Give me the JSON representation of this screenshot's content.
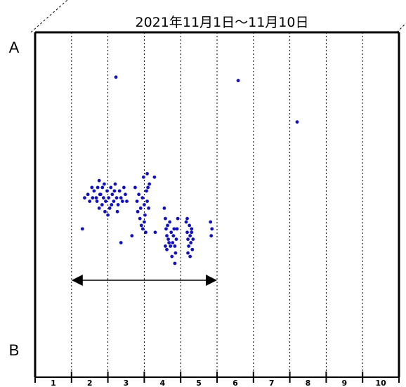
{
  "chart_data": {
    "type": "scatter",
    "title": "2021年11月1日〜11月10日",
    "top_label": "A",
    "bottom_label": "B",
    "categories": [
      "1",
      "2",
      "3",
      "4",
      "5",
      "6",
      "7",
      "8",
      "9",
      "10"
    ],
    "xlim": [
      0,
      10
    ],
    "ylim": [
      0,
      1
    ],
    "point_color": "#1010c0",
    "grid": "dotted vertical lines at day boundaries",
    "range_arrow": {
      "from": 1,
      "to": 5
    },
    "points": [
      [
        2.22,
        0.87
      ],
      [
        5.58,
        0.86
      ],
      [
        7.2,
        0.74
      ],
      [
        1.36,
        0.52
      ],
      [
        1.45,
        0.53
      ],
      [
        1.5,
        0.51
      ],
      [
        1.58,
        0.52
      ],
      [
        1.62,
        0.54
      ],
      [
        1.7,
        0.51
      ],
      [
        1.72,
        0.55
      ],
      [
        1.76,
        0.57
      ],
      [
        1.8,
        0.53
      ],
      [
        1.84,
        0.5
      ],
      [
        1.88,
        0.52
      ],
      [
        1.9,
        0.56
      ],
      [
        1.94,
        0.51
      ],
      [
        1.98,
        0.54
      ],
      [
        2.02,
        0.52
      ],
      [
        2.05,
        0.49
      ],
      [
        2.08,
        0.55
      ],
      [
        2.12,
        0.53
      ],
      [
        2.16,
        0.51
      ],
      [
        2.2,
        0.56
      ],
      [
        2.24,
        0.52
      ],
      [
        2.28,
        0.5
      ],
      [
        2.32,
        0.54
      ],
      [
        2.36,
        0.52
      ],
      [
        2.4,
        0.51
      ],
      [
        2.44,
        0.55
      ],
      [
        2.48,
        0.53
      ],
      [
        2.52,
        0.51
      ],
      [
        1.76,
        0.49
      ],
      [
        1.92,
        0.48
      ],
      [
        2.0,
        0.47
      ],
      [
        2.26,
        0.48
      ],
      [
        1.85,
        0.55
      ],
      [
        2.1,
        0.5
      ],
      [
        2.18,
        0.54
      ],
      [
        1.68,
        0.52
      ],
      [
        1.56,
        0.55
      ],
      [
        1.78,
        0.53
      ],
      [
        2.75,
        0.55
      ],
      [
        2.8,
        0.51
      ],
      [
        2.85,
        0.53
      ],
      [
        2.9,
        0.49
      ],
      [
        2.95,
        0.52
      ],
      [
        3.0,
        0.5
      ],
      [
        3.02,
        0.47
      ],
      [
        3.06,
        0.54
      ],
      [
        3.08,
        0.51
      ],
      [
        3.1,
        0.55
      ],
      [
        3.12,
        0.49
      ],
      [
        3.14,
        0.56
      ],
      [
        2.88,
        0.46
      ],
      [
        2.92,
        0.44
      ],
      [
        2.96,
        0.43
      ],
      [
        3.0,
        0.45
      ],
      [
        3.04,
        0.42
      ],
      [
        2.82,
        0.48
      ],
      [
        3.28,
        0.58
      ],
      [
        2.66,
        0.41
      ],
      [
        2.36,
        0.39
      ],
      [
        1.3,
        0.43
      ],
      [
        3.55,
        0.49
      ],
      [
        3.58,
        0.46
      ],
      [
        3.6,
        0.43
      ],
      [
        3.62,
        0.41
      ],
      [
        3.64,
        0.44
      ],
      [
        3.66,
        0.4
      ],
      [
        3.7,
        0.45
      ],
      [
        3.72,
        0.38
      ],
      [
        3.74,
        0.42
      ],
      [
        3.78,
        0.39
      ],
      [
        3.8,
        0.41
      ],
      [
        3.82,
        0.43
      ],
      [
        3.84,
        0.38
      ],
      [
        3.86,
        0.36
      ],
      [
        3.88,
        0.4
      ],
      [
        3.9,
        0.43
      ],
      [
        3.92,
        0.46
      ],
      [
        3.58,
        0.38
      ],
      [
        3.62,
        0.37
      ],
      [
        3.68,
        0.39
      ],
      [
        3.76,
        0.35
      ],
      [
        3.84,
        0.33
      ],
      [
        3.3,
        0.42
      ],
      [
        4.15,
        0.45
      ],
      [
        4.18,
        0.42
      ],
      [
        4.2,
        0.4
      ],
      [
        4.22,
        0.38
      ],
      [
        4.24,
        0.44
      ],
      [
        4.26,
        0.41
      ],
      [
        4.28,
        0.39
      ],
      [
        4.3,
        0.43
      ],
      [
        4.32,
        0.37
      ],
      [
        4.34,
        0.4
      ],
      [
        4.2,
        0.36
      ],
      [
        4.26,
        0.35
      ],
      [
        4.3,
        0.42
      ],
      [
        4.18,
        0.46
      ],
      [
        4.82,
        0.45
      ],
      [
        4.86,
        0.43
      ],
      [
        4.84,
        0.41
      ],
      [
        2.98,
        0.58
      ],
      [
        3.08,
        0.59
      ]
    ]
  }
}
